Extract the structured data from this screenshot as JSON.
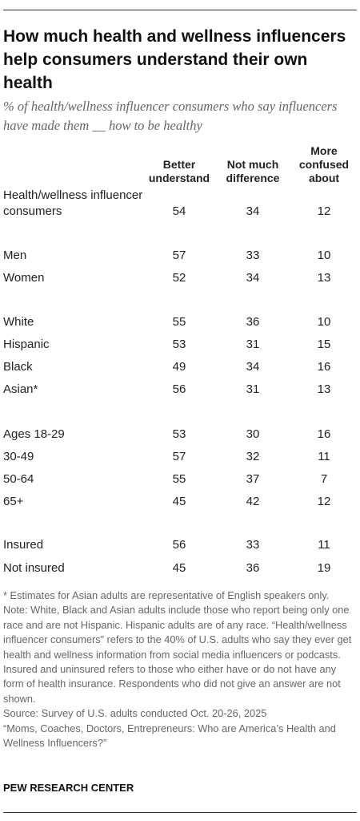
{
  "header": {
    "title": "How much health and wellness influencers help consumers understand their own health",
    "subtitle": "% of health/wellness influencer consumers who say influencers have made them __ how to be healthy"
  },
  "table": {
    "columns": [
      "Better understand",
      "Not much difference",
      "More confused about"
    ],
    "rows": [
      {
        "label": "Health/wellness influencer consumers",
        "values": [
          54,
          34,
          12
        ]
      },
      {
        "label": "Men",
        "values": [
          57,
          33,
          10
        ]
      },
      {
        "label": "Women",
        "values": [
          52,
          34,
          13
        ]
      },
      {
        "label": "White",
        "values": [
          55,
          36,
          10
        ]
      },
      {
        "label": "Hispanic",
        "values": [
          53,
          31,
          15
        ]
      },
      {
        "label": "Black",
        "values": [
          49,
          34,
          16
        ]
      },
      {
        "label": "Asian*",
        "values": [
          56,
          31,
          13
        ]
      },
      {
        "label": "Ages 18-29",
        "values": [
          53,
          30,
          16
        ]
      },
      {
        "label": "30-49",
        "values": [
          57,
          32,
          11
        ]
      },
      {
        "label": "50-64",
        "values": [
          55,
          37,
          7
        ]
      },
      {
        "label": "65+",
        "values": [
          45,
          42,
          12
        ]
      },
      {
        "label": "Insured",
        "values": [
          56,
          33,
          11
        ]
      },
      {
        "label": "Not insured",
        "values": [
          45,
          36,
          19
        ]
      }
    ]
  },
  "notes": [
    "* Estimates for Asian adults are representative of English speakers only.",
    "Note: White, Black and Asian adults include those who report being only one race and are not Hispanic. Hispanic adults are of any race. “Health/wellness influencer consumers” refers to the 40% of U.S. adults who say they ever get health and wellness information from social media influencers or podcasts. Insured and uninsured refers to those who either have or do not have any form of health insurance. Respondents who did not give an answer are not shown.",
    "Source: Survey of U.S. adults conducted Oct. 20-26, 2025",
    "“Moms, Coaches, Doctors, Entrepreneurs: Who are America’s Health and Wellness Influencers?”"
  ],
  "footer": "PEW RESEARCH CENTER"
}
